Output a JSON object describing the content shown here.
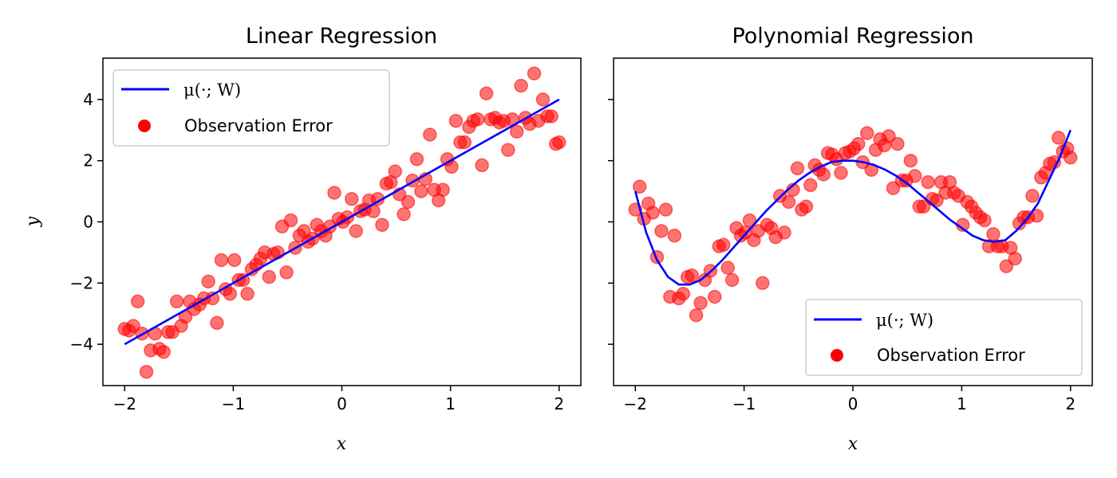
{
  "colors": {
    "line": "#0000ff",
    "points": "#ff0000",
    "background": "#ffffff",
    "frame": "#000000"
  },
  "chart_data": [
    {
      "type": "scatter",
      "title": "Linear Regression",
      "xlabel": "x",
      "ylabel": "y",
      "xlim": [
        -2.2,
        2.2
      ],
      "ylim": [
        -5.35,
        5.35
      ],
      "xticks": [
        -2,
        -1,
        0,
        1,
        2
      ],
      "xtick_labels": [
        "−2",
        "−1",
        "0",
        "1",
        "2"
      ],
      "yticks": [
        -4,
        -2,
        0,
        2,
        4
      ],
      "ytick_labels": [
        "−4",
        "−2",
        "0",
        "2",
        "4"
      ],
      "grid": false,
      "legend_position": "upper-left",
      "legend": {
        "line_label": "μ(·; W)",
        "scatter_label": "Observation Error"
      },
      "fit_line": {
        "x": [
          -2,
          2
        ],
        "y": [
          -4,
          4
        ]
      },
      "points": {
        "x": [
          -2.0,
          -1.96,
          -1.92,
          -1.88,
          -1.84,
          -1.8,
          -1.76,
          -1.72,
          -1.68,
          -1.64,
          -1.6,
          -1.56,
          -1.52,
          -1.48,
          -1.44,
          -1.4,
          -1.36,
          -1.31,
          -1.27,
          -1.23,
          -1.19,
          -1.15,
          -1.11,
          -1.07,
          -1.03,
          -0.99,
          -0.95,
          -0.91,
          -0.87,
          -0.83,
          -0.79,
          -0.75,
          -0.71,
          -0.67,
          -0.63,
          -0.59,
          -0.55,
          -0.51,
          -0.47,
          -0.43,
          -0.39,
          -0.35,
          -0.31,
          -0.27,
          -0.23,
          -0.19,
          -0.15,
          -0.11,
          -0.07,
          -0.03,
          0.01,
          0.05,
          0.09,
          0.13,
          0.17,
          0.21,
          0.25,
          0.29,
          0.33,
          0.37,
          0.41,
          0.45,
          0.49,
          0.53,
          0.57,
          0.61,
          0.65,
          0.69,
          0.73,
          0.77,
          0.81,
          0.85,
          0.89,
          0.93,
          0.97,
          1.01,
          1.05,
          1.09,
          1.13,
          1.17,
          1.21,
          1.25,
          1.29,
          1.33,
          1.37,
          1.41,
          1.45,
          1.49,
          1.53,
          1.57,
          1.61,
          1.65,
          1.69,
          1.73,
          1.77,
          1.81,
          1.85,
          1.89,
          1.93,
          1.97,
          2.0
        ],
        "y": [
          -3.5,
          -3.55,
          -3.4,
          -2.6,
          -3.65,
          -4.9,
          -4.2,
          -3.65,
          -4.15,
          -4.25,
          -3.6,
          -3.6,
          -2.6,
          -3.4,
          -3.1,
          -2.6,
          -2.85,
          -2.7,
          -2.5,
          -1.95,
          -2.5,
          -3.3,
          -1.25,
          -2.2,
          -2.35,
          -1.25,
          -1.9,
          -1.9,
          -2.35,
          -1.55,
          -1.4,
          -1.2,
          -1.0,
          -1.8,
          -1.05,
          -1.0,
          -0.15,
          -1.65,
          0.05,
          -0.85,
          -0.45,
          -0.3,
          -0.65,
          -0.55,
          -0.1,
          -0.3,
          -0.45,
          -0.15,
          0.95,
          0.1,
          0.0,
          0.15,
          0.75,
          -0.3,
          0.35,
          0.4,
          0.7,
          0.35,
          0.75,
          -0.1,
          1.25,
          1.3,
          1.65,
          0.9,
          0.25,
          0.65,
          1.35,
          2.05,
          1.0,
          1.4,
          2.85,
          1.05,
          0.7,
          1.05,
          2.05,
          1.8,
          3.3,
          2.6,
          2.6,
          3.1,
          3.3,
          3.35,
          1.85,
          4.2,
          3.35,
          3.4,
          3.25,
          3.3,
          2.35,
          3.35,
          2.95,
          4.45,
          3.4,
          3.2,
          4.85,
          3.3,
          4.0,
          3.45,
          3.45,
          2.55,
          2.6
        ]
      }
    },
    {
      "type": "scatter",
      "title": "Polynomial Regression",
      "xlabel": "x",
      "ylabel": "",
      "xlim": [
        -2.2,
        2.2
      ],
      "ylim": [
        -5.35,
        5.35
      ],
      "xticks": [
        -2,
        -1,
        0,
        1,
        2
      ],
      "xtick_labels": [
        "−2",
        "−1",
        "0",
        "1",
        "2"
      ],
      "yticks": [
        -4,
        -2,
        0,
        2,
        4
      ],
      "ytick_labels": [],
      "grid": false,
      "legend_position": "lower-right",
      "legend": {
        "line_label": "μ(·; W)",
        "scatter_label": "Observation Error"
      },
      "fit_line": {
        "x": [
          -2.0,
          -1.9,
          -1.8,
          -1.7,
          -1.6,
          -1.5,
          -1.4,
          -1.3,
          -1.2,
          -1.1,
          -1.0,
          -0.9,
          -0.8,
          -0.7,
          -0.6,
          -0.5,
          -0.4,
          -0.3,
          -0.2,
          -0.1,
          0.0,
          0.1,
          0.2,
          0.3,
          0.4,
          0.5,
          0.6,
          0.7,
          0.8,
          0.9,
          1.0,
          1.1,
          1.2,
          1.3,
          1.4,
          1.5,
          1.6,
          1.7,
          1.8,
          1.9,
          2.0
        ],
        "y": [
          1.0,
          -0.35,
          -1.25,
          -1.8,
          -2.05,
          -2.05,
          -1.9,
          -1.6,
          -1.25,
          -0.85,
          -0.45,
          -0.05,
          0.35,
          0.7,
          1.05,
          1.35,
          1.6,
          1.8,
          1.95,
          2.0,
          2.0,
          1.95,
          1.85,
          1.7,
          1.5,
          1.25,
          0.95,
          0.65,
          0.35,
          0.05,
          -0.2,
          -0.45,
          -0.6,
          -0.65,
          -0.6,
          -0.3,
          0.1,
          0.6,
          1.35,
          2.1,
          3.0
        ]
      },
      "points": {
        "x": [
          -2.0,
          -1.96,
          -1.92,
          -1.88,
          -1.84,
          -1.8,
          -1.76,
          -1.72,
          -1.68,
          -1.64,
          -1.6,
          -1.56,
          -1.52,
          -1.48,
          -1.44,
          -1.4,
          -1.36,
          -1.31,
          -1.27,
          -1.23,
          -1.19,
          -1.15,
          -1.11,
          -1.07,
          -1.03,
          -0.99,
          -0.95,
          -0.91,
          -0.87,
          -0.83,
          -0.79,
          -0.75,
          -0.71,
          -0.67,
          -0.63,
          -0.59,
          -0.55,
          -0.51,
          -0.47,
          -0.43,
          -0.39,
          -0.35,
          -0.31,
          -0.27,
          -0.23,
          -0.19,
          -0.15,
          -0.11,
          -0.07,
          -0.03,
          0.01,
          0.05,
          0.09,
          0.13,
          0.17,
          0.21,
          0.25,
          0.29,
          0.33,
          0.37,
          0.41,
          0.45,
          0.49,
          0.53,
          0.57,
          0.61,
          0.65,
          0.69,
          0.73,
          0.77,
          0.81,
          0.85,
          0.89,
          0.93,
          0.97,
          1.01,
          1.05,
          1.09,
          1.13,
          1.17,
          1.21,
          1.25,
          1.29,
          1.33,
          1.37,
          1.41,
          1.45,
          1.49,
          1.53,
          1.57,
          1.61,
          1.65,
          1.69,
          1.73,
          1.77,
          1.81,
          1.85,
          1.89,
          1.93,
          1.97,
          2.0
        ],
        "y": [
          0.4,
          1.15,
          0.1,
          0.6,
          0.3,
          -1.15,
          -0.3,
          0.4,
          -2.45,
          -0.45,
          -2.5,
          -2.35,
          -1.8,
          -1.75,
          -3.05,
          -2.65,
          -1.9,
          -1.6,
          -2.45,
          -0.8,
          -0.75,
          -1.5,
          -1.9,
          -0.2,
          -0.45,
          -0.35,
          0.05,
          -0.6,
          -0.3,
          -2.0,
          -0.1,
          -0.2,
          -0.5,
          0.85,
          -0.35,
          0.65,
          1.05,
          1.75,
          0.4,
          0.5,
          1.2,
          1.85,
          1.7,
          1.55,
          2.25,
          2.2,
          2.05,
          1.6,
          2.25,
          2.3,
          2.4,
          2.55,
          1.95,
          2.9,
          1.7,
          2.35,
          2.7,
          2.5,
          2.8,
          1.1,
          2.55,
          1.35,
          1.35,
          2.0,
          1.5,
          0.5,
          0.5,
          1.3,
          0.75,
          0.7,
          1.3,
          0.95,
          1.3,
          0.95,
          0.85,
          -0.1,
          0.65,
          0.5,
          0.3,
          0.15,
          0.05,
          -0.8,
          -0.4,
          -0.8,
          -0.8,
          -1.45,
          -0.85,
          -1.2,
          -0.05,
          0.15,
          0.15,
          0.85,
          0.2,
          1.45,
          1.6,
          1.9,
          1.95,
          2.75,
          2.3,
          2.4,
          2.1
        ]
      }
    }
  ]
}
